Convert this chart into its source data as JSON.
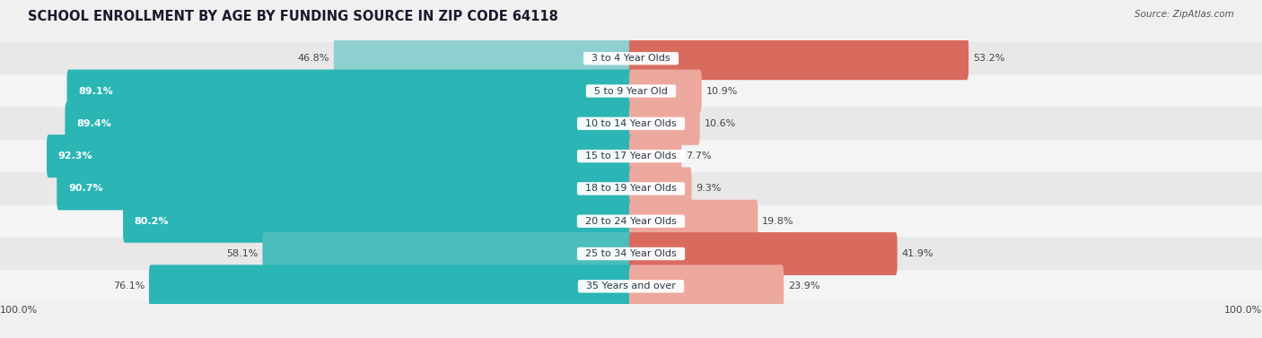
{
  "title": "SCHOOL ENROLLMENT BY AGE BY FUNDING SOURCE IN ZIP CODE 64118",
  "source": "Source: ZipAtlas.com",
  "categories": [
    "3 to 4 Year Olds",
    "5 to 9 Year Old",
    "10 to 14 Year Olds",
    "15 to 17 Year Olds",
    "18 to 19 Year Olds",
    "20 to 24 Year Olds",
    "25 to 34 Year Olds",
    "35 Years and over"
  ],
  "public_pct": [
    46.8,
    89.1,
    89.4,
    92.3,
    90.7,
    80.2,
    58.1,
    76.1
  ],
  "private_pct": [
    53.2,
    10.9,
    10.6,
    7.7,
    9.3,
    19.8,
    41.9,
    23.9
  ],
  "public_colors": [
    "#8ECFCF",
    "#2BB5B5",
    "#2BB5B5",
    "#2BB5B5",
    "#2BB5B5",
    "#2BB5B5",
    "#4BBDBD",
    "#2BB5B5"
  ],
  "private_colors": [
    "#D96B5E",
    "#EDA89E",
    "#EDA89E",
    "#EDA89E",
    "#EDA89E",
    "#EDA89E",
    "#D96B5E",
    "#EDA89E"
  ],
  "bg_color": "#F0F0F0",
  "row_bg_odd": "#E8E8E8",
  "row_bg_even": "#F4F4F4",
  "figsize": [
    14.06,
    3.77
  ],
  "title_fontsize": 10.5,
  "label_fontsize": 8,
  "source_fontsize": 7.5,
  "legend_fontsize": 8.5,
  "legend_color_pub": "#2BB5B5",
  "legend_color_priv": "#D96B5E"
}
